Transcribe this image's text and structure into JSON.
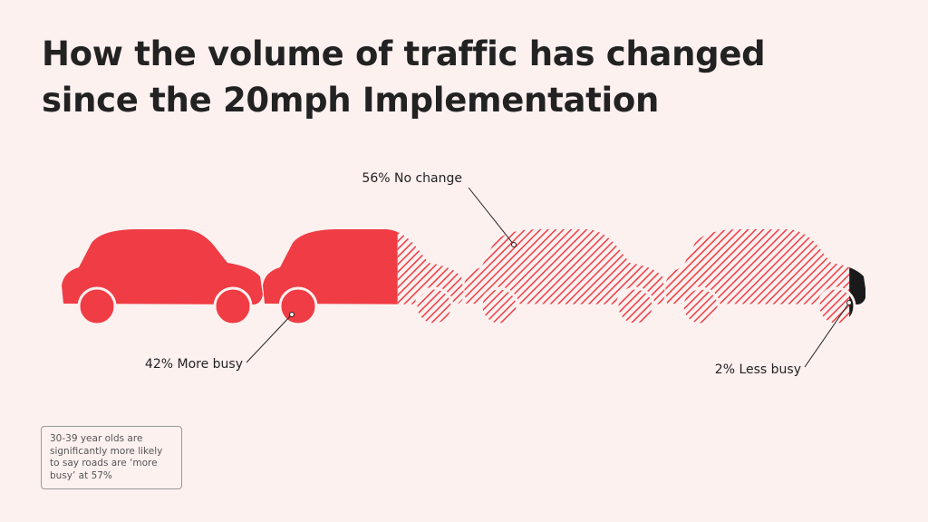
{
  "chart_data": {
    "type": "car-fill",
    "title": "How the volume of traffic has changed since the 20mph Implementation",
    "categories": [
      "More busy",
      "No change",
      "Less busy"
    ],
    "values": [
      42,
      56,
      2
    ],
    "value_labels": [
      "42%",
      "56%",
      "2%"
    ],
    "colors": [
      "#f03c44",
      "#f03c44",
      "#1a1a1a"
    ],
    "fills": [
      "solid",
      "hatched",
      "solid"
    ],
    "note": "30-39 year olds are significantly more likely to say roads are ‘more busy’ at 57%"
  }
}
